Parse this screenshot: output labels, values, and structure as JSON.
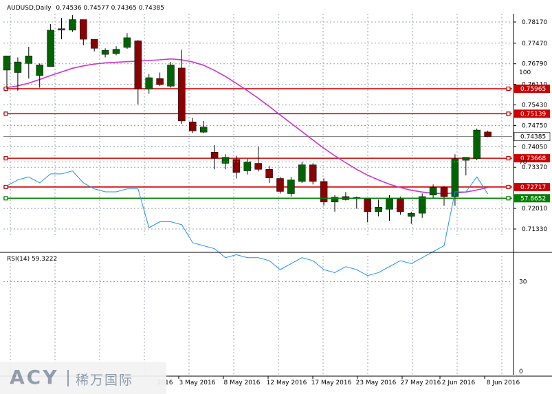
{
  "header": {
    "symbol": "AUDUSD,Daily",
    "ohlc": "0.74536 0.74577 0.74365 0.74385"
  },
  "rsi_label": "RSI(14) 59.3222",
  "watermark": {
    "brand": "ACY",
    "chinese": "稀万国际"
  },
  "colors": {
    "bull": "#006400",
    "bear": "#8b0000",
    "ma": "#cc33cc",
    "rsi_line": "#1e90ff",
    "hline": "#cc0000",
    "rsi_level": "#008000"
  },
  "chart_data": [
    {
      "type": "candlestick",
      "title": "AUDUSD,Daily",
      "x_labels": [
        "3 May 2016",
        "8 May 2016",
        "12 May 2016",
        "17 May 2016",
        "23 May 2016",
        "27 May 2016",
        "2 Jun 2016",
        "8 Jun 2016"
      ],
      "y_ticks": [
        "0.78170",
        "0.77470",
        "0.76790",
        "0.76110",
        "0.75430",
        "0.74750",
        "0.74050",
        "0.73370",
        "0.72010",
        "0.71330"
      ],
      "current_price": "0.74385",
      "horizontal_lines": [
        "0.75965",
        "0.75139",
        "0.73668",
        "0.72717"
      ],
      "candles": [
        {
          "o": 0.7658,
          "h": 0.77,
          "l": 0.7595,
          "c": 0.7705
        },
        {
          "o": 0.765,
          "h": 0.77,
          "l": 0.759,
          "c": 0.7685
        },
        {
          "o": 0.768,
          "h": 0.7735,
          "l": 0.763,
          "c": 0.7705
        },
        {
          "o": 0.764,
          "h": 0.768,
          "l": 0.76,
          "c": 0.7675
        },
        {
          "o": 0.767,
          "h": 0.781,
          "l": 0.767,
          "c": 0.779
        },
        {
          "o": 0.779,
          "h": 0.783,
          "l": 0.776,
          "c": 0.7795
        },
        {
          "o": 0.779,
          "h": 0.784,
          "l": 0.7785,
          "c": 0.7825
        },
        {
          "o": 0.7825,
          "h": 0.7825,
          "l": 0.774,
          "c": 0.776
        },
        {
          "o": 0.776,
          "h": 0.776,
          "l": 0.772,
          "c": 0.773
        },
        {
          "o": 0.771,
          "h": 0.773,
          "l": 0.77,
          "c": 0.7723
        },
        {
          "o": 0.7713,
          "h": 0.7737,
          "l": 0.7707,
          "c": 0.7727
        },
        {
          "o": 0.7733,
          "h": 0.778,
          "l": 0.7728,
          "c": 0.7765
        },
        {
          "o": 0.7755,
          "h": 0.7757,
          "l": 0.7545,
          "c": 0.7595
        },
        {
          "o": 0.7595,
          "h": 0.7645,
          "l": 0.758,
          "c": 0.7633
        },
        {
          "o": 0.763,
          "h": 0.765,
          "l": 0.7605,
          "c": 0.761
        },
        {
          "o": 0.7605,
          "h": 0.7685,
          "l": 0.76,
          "c": 0.7675
        },
        {
          "o": 0.7665,
          "h": 0.7725,
          "l": 0.748,
          "c": 0.749
        },
        {
          "o": 0.7487,
          "h": 0.75,
          "l": 0.745,
          "c": 0.7457
        },
        {
          "o": 0.7453,
          "h": 0.749,
          "l": 0.745,
          "c": 0.747
        },
        {
          "o": 0.7387,
          "h": 0.741,
          "l": 0.733,
          "c": 0.7367
        },
        {
          "o": 0.735,
          "h": 0.738,
          "l": 0.733,
          "c": 0.737
        },
        {
          "o": 0.7363,
          "h": 0.7375,
          "l": 0.73,
          "c": 0.732
        },
        {
          "o": 0.7325,
          "h": 0.7365,
          "l": 0.7313,
          "c": 0.7355
        },
        {
          "o": 0.735,
          "h": 0.7405,
          "l": 0.7323,
          "c": 0.733
        },
        {
          "o": 0.733,
          "h": 0.7342,
          "l": 0.7285,
          "c": 0.7302
        },
        {
          "o": 0.73,
          "h": 0.7305,
          "l": 0.725,
          "c": 0.7257
        },
        {
          "o": 0.725,
          "h": 0.7305,
          "l": 0.724,
          "c": 0.7295
        },
        {
          "o": 0.729,
          "h": 0.7355,
          "l": 0.7285,
          "c": 0.7345
        },
        {
          "o": 0.7345,
          "h": 0.735,
          "l": 0.728,
          "c": 0.729
        },
        {
          "o": 0.729,
          "h": 0.73,
          "l": 0.721,
          "c": 0.7222
        },
        {
          "o": 0.7222,
          "h": 0.7245,
          "l": 0.719,
          "c": 0.7238
        },
        {
          "o": 0.724,
          "h": 0.7255,
          "l": 0.7227,
          "c": 0.723
        },
        {
          "o": 0.7237,
          "h": 0.724,
          "l": 0.72,
          "c": 0.7233
        },
        {
          "o": 0.7232,
          "h": 0.7235,
          "l": 0.7155,
          "c": 0.719
        },
        {
          "o": 0.719,
          "h": 0.723,
          "l": 0.7175,
          "c": 0.7205
        },
        {
          "o": 0.7198,
          "h": 0.7245,
          "l": 0.716,
          "c": 0.7232
        },
        {
          "o": 0.7232,
          "h": 0.724,
          "l": 0.718,
          "c": 0.719
        },
        {
          "o": 0.7175,
          "h": 0.719,
          "l": 0.715,
          "c": 0.7185
        },
        {
          "o": 0.7185,
          "h": 0.725,
          "l": 0.717,
          "c": 0.724
        },
        {
          "o": 0.7245,
          "h": 0.728,
          "l": 0.7235,
          "c": 0.727
        },
        {
          "o": 0.727,
          "h": 0.7275,
          "l": 0.721,
          "c": 0.724
        },
        {
          "o": 0.724,
          "h": 0.738,
          "l": 0.721,
          "c": 0.7365
        },
        {
          "o": 0.736,
          "h": 0.737,
          "l": 0.731,
          "c": 0.737
        },
        {
          "o": 0.7365,
          "h": 0.7465,
          "l": 0.736,
          "c": 0.746
        },
        {
          "o": 0.74536,
          "h": 0.74577,
          "l": 0.74365,
          "c": 0.74385
        }
      ],
      "moving_average": [
        0.76,
        0.7606,
        0.7615,
        0.7627,
        0.764,
        0.7652,
        0.7664,
        0.7672,
        0.7678,
        0.7682,
        0.7684,
        0.7686,
        0.7688,
        0.769,
        0.7692,
        0.7695,
        0.7692,
        0.7685,
        0.7674,
        0.7657,
        0.7637,
        0.7614,
        0.759,
        0.7565,
        0.7538,
        0.751,
        0.7482,
        0.7455,
        0.7427,
        0.74,
        0.7375,
        0.7352,
        0.733,
        0.7311,
        0.7295,
        0.7281,
        0.727,
        0.7261,
        0.7255,
        0.7251,
        0.725,
        0.7252,
        0.7255,
        0.7262,
        0.727
      ]
    },
    {
      "type": "line",
      "title": "RSI(14) 59.3222",
      "ylim": [
        0,
        100
      ],
      "y_ticks": [
        "100",
        "70",
        "30",
        "0"
      ],
      "level": "57.8652",
      "values": [
        62,
        64,
        65,
        63,
        66,
        66,
        67,
        63,
        61,
        60,
        60,
        61,
        61,
        48,
        50,
        50,
        49,
        43,
        42,
        41,
        38,
        39,
        38,
        38,
        37,
        34,
        36,
        38,
        37,
        34,
        33,
        35,
        34,
        32,
        33,
        35,
        37,
        36,
        38,
        40,
        42,
        60,
        60,
        65,
        59.3
      ]
    }
  ]
}
